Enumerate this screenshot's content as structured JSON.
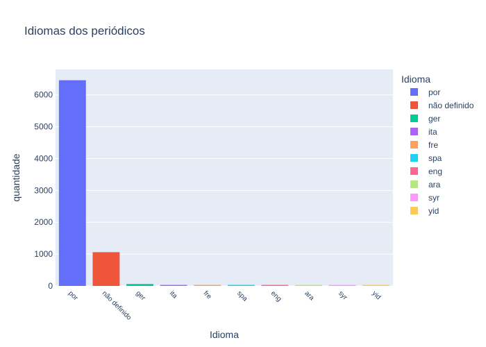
{
  "chart_data": {
    "type": "bar",
    "title": "Idiomas dos periódicos",
    "xlabel": "Idioma",
    "ylabel": "quantidade",
    "ylim": [
      0,
      6800
    ],
    "yticks": [
      0,
      1000,
      2000,
      3000,
      4000,
      5000,
      6000
    ],
    "ytick_labels": [
      "0",
      "1000",
      "2000",
      "3000",
      "4000",
      "5000",
      "6000"
    ],
    "categories": [
      "por",
      "não definido",
      "ger",
      "ita",
      "fre",
      "spa",
      "eng",
      "ara",
      "syr",
      "yid"
    ],
    "values": [
      6460,
      1060,
      60,
      30,
      20,
      12,
      8,
      4,
      2,
      1
    ],
    "colors": [
      "#636efa",
      "#EF553B",
      "#00cc96",
      "#ab63fa",
      "#FFA15A",
      "#19d3f3",
      "#FF6692",
      "#B6E880",
      "#FF97FF",
      "#FECB52"
    ],
    "legend": {
      "title": "Idioma",
      "position": "right"
    },
    "plot_background": "#E5ECF6",
    "grid": true
  }
}
